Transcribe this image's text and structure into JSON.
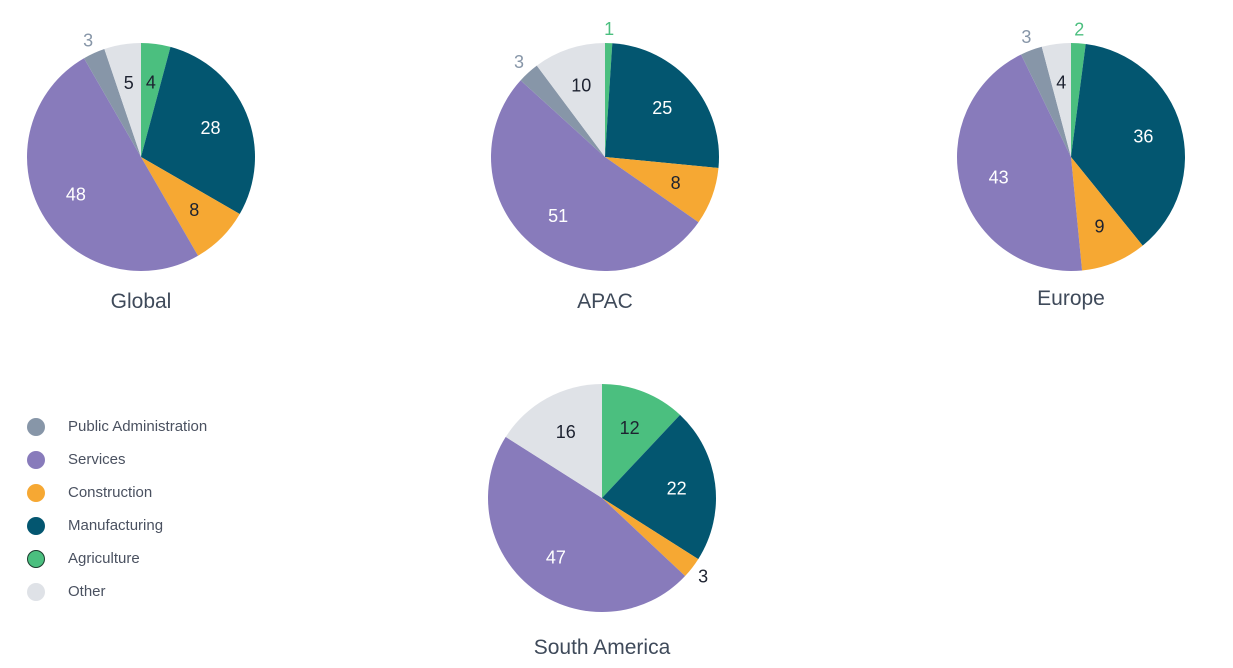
{
  "colors": {
    "Public Administration": "#8796a8",
    "Services": "#887bbb",
    "Construction": "#f6a833",
    "Manufacturing": "#035670",
    "Agriculture": "#4bbf7f",
    "Other": "#dfe2e7"
  },
  "legend": {
    "items": [
      {
        "label": "Public Administration",
        "color": "#8796a8"
      },
      {
        "label": "Services",
        "color": "#887bbb"
      },
      {
        "label": "Construction",
        "color": "#f6a833"
      },
      {
        "label": "Manufacturing",
        "color": "#035670"
      },
      {
        "label": "Agriculture",
        "color": "#4bbf7f"
      },
      {
        "label": "Other",
        "color": "#dfe2e7"
      }
    ],
    "placement": "bottom-left"
  },
  "chart_data": [
    {
      "type": "pie",
      "title": "Global",
      "categories": [
        "Agriculture",
        "Manufacturing",
        "Construction",
        "Services",
        "Public Administration",
        "Other"
      ],
      "values": [
        4,
        28,
        8,
        48,
        3,
        5
      ]
    },
    {
      "type": "pie",
      "title": "APAC",
      "categories": [
        "Agriculture",
        "Manufacturing",
        "Construction",
        "Services",
        "Public Administration",
        "Other"
      ],
      "values": [
        1,
        25,
        8,
        51,
        3,
        10
      ]
    },
    {
      "type": "pie",
      "title": "Europe",
      "categories": [
        "Agriculture",
        "Manufacturing",
        "Construction",
        "Services",
        "Public Administration",
        "Other"
      ],
      "values": [
        2,
        36,
        9,
        43,
        3,
        4
      ]
    },
    {
      "type": "pie",
      "title": "South America",
      "categories": [
        "Agriculture",
        "Manufacturing",
        "Construction",
        "Services",
        "Public Administration",
        "Other"
      ],
      "values": [
        12,
        22,
        3,
        47,
        0,
        16
      ]
    }
  ]
}
